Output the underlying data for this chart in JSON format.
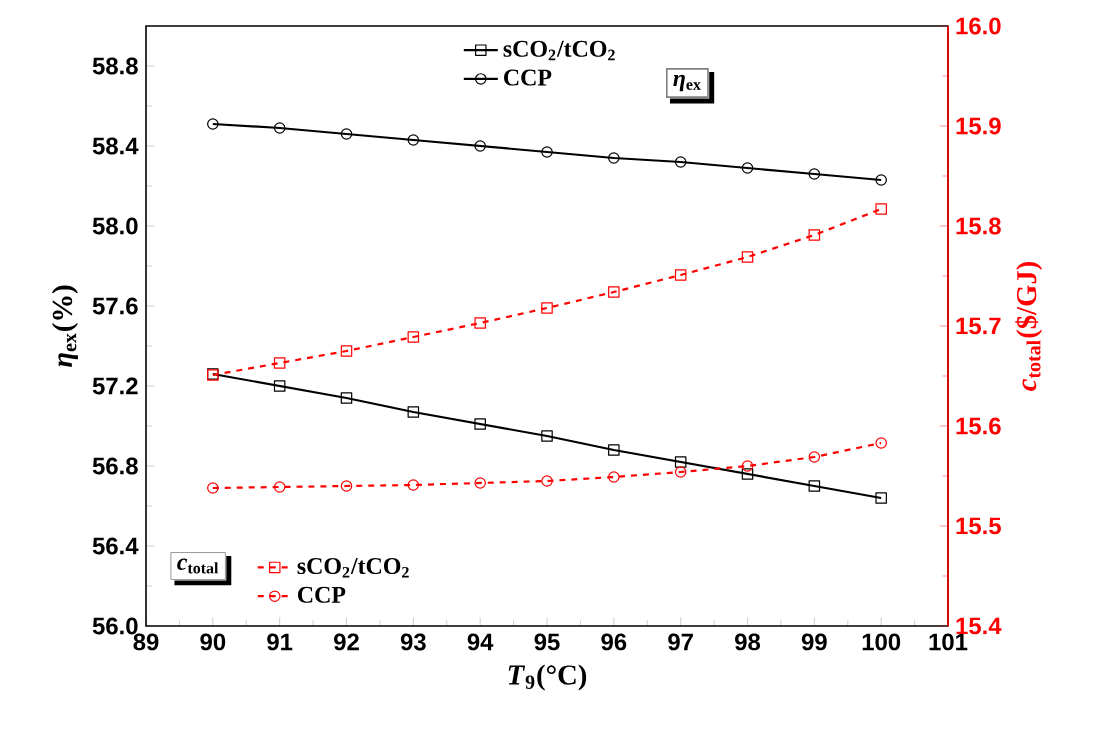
{
  "chart_data": {
    "type": "line",
    "xlabel": "*T*$_{9}$(°C)",
    "ylabel": "*η*$_{ex}$(%)",
    "y2label": "*c*$_{total}$($/GJ)",
    "x": [
      90,
      91,
      92,
      93,
      94,
      95,
      96,
      97,
      98,
      99,
      100
    ],
    "xlim": [
      89,
      101
    ],
    "xticks": [
      89,
      90,
      91,
      92,
      93,
      94,
      95,
      96,
      97,
      98,
      99,
      100,
      101
    ],
    "ylim": [
      56,
      59
    ],
    "yticks": [
      {
        "value": 56,
        "label": "56.0"
      },
      56.4,
      56.8,
      57.2,
      57.6,
      {
        "value": 58,
        "label": "58.0"
      },
      58.4,
      58.8
    ],
    "y2lim": [
      15.4,
      16.0
    ],
    "y2ticks": [
      15.4,
      15.5,
      15.6,
      15.7,
      15.8,
      15.9,
      {
        "value": 16,
        "label": "16.0"
      }
    ],
    "legend": "top",
    "annotations": [
      "*η*$_{ex}$",
      "*c*$_{total}$"
    ],
    "series": [
      {
        "name": "sCO$_{2}$/tCO$_{2}$",
        "color": "#000000",
        "marker": "square",
        "line_style": "solid",
        "values": [
          57.26,
          57.2,
          57.14,
          57.07,
          57.01,
          56.95,
          56.88,
          56.82,
          56.76,
          56.7,
          56.64
        ]
      },
      {
        "name": "CCP",
        "color": "#000000",
        "marker": "circle",
        "line_style": "solid",
        "values": [
          58.51,
          58.49,
          58.46,
          58.43,
          58.4,
          58.37,
          58.34,
          58.32,
          58.29,
          58.26,
          58.23
        ]
      },
      {
        "name": "sCO$_{2}$/tCO$_{2}$",
        "color": "#ff0000",
        "axis": "y2",
        "marker": "square",
        "line_style": "dashed",
        "values": [
          15.651,
          15.663,
          15.675,
          15.689,
          15.703,
          15.718,
          15.734,
          15.751,
          15.769,
          15.791,
          15.817
        ]
      },
      {
        "name": "CCP",
        "color": "#ff0000",
        "axis": "y2",
        "marker": "circle",
        "line_style": "dashed",
        "values": [
          15.538,
          15.539,
          15.54,
          15.541,
          15.543,
          15.545,
          15.549,
          15.554,
          15.56,
          15.569,
          15.583
        ]
      }
    ]
  }
}
